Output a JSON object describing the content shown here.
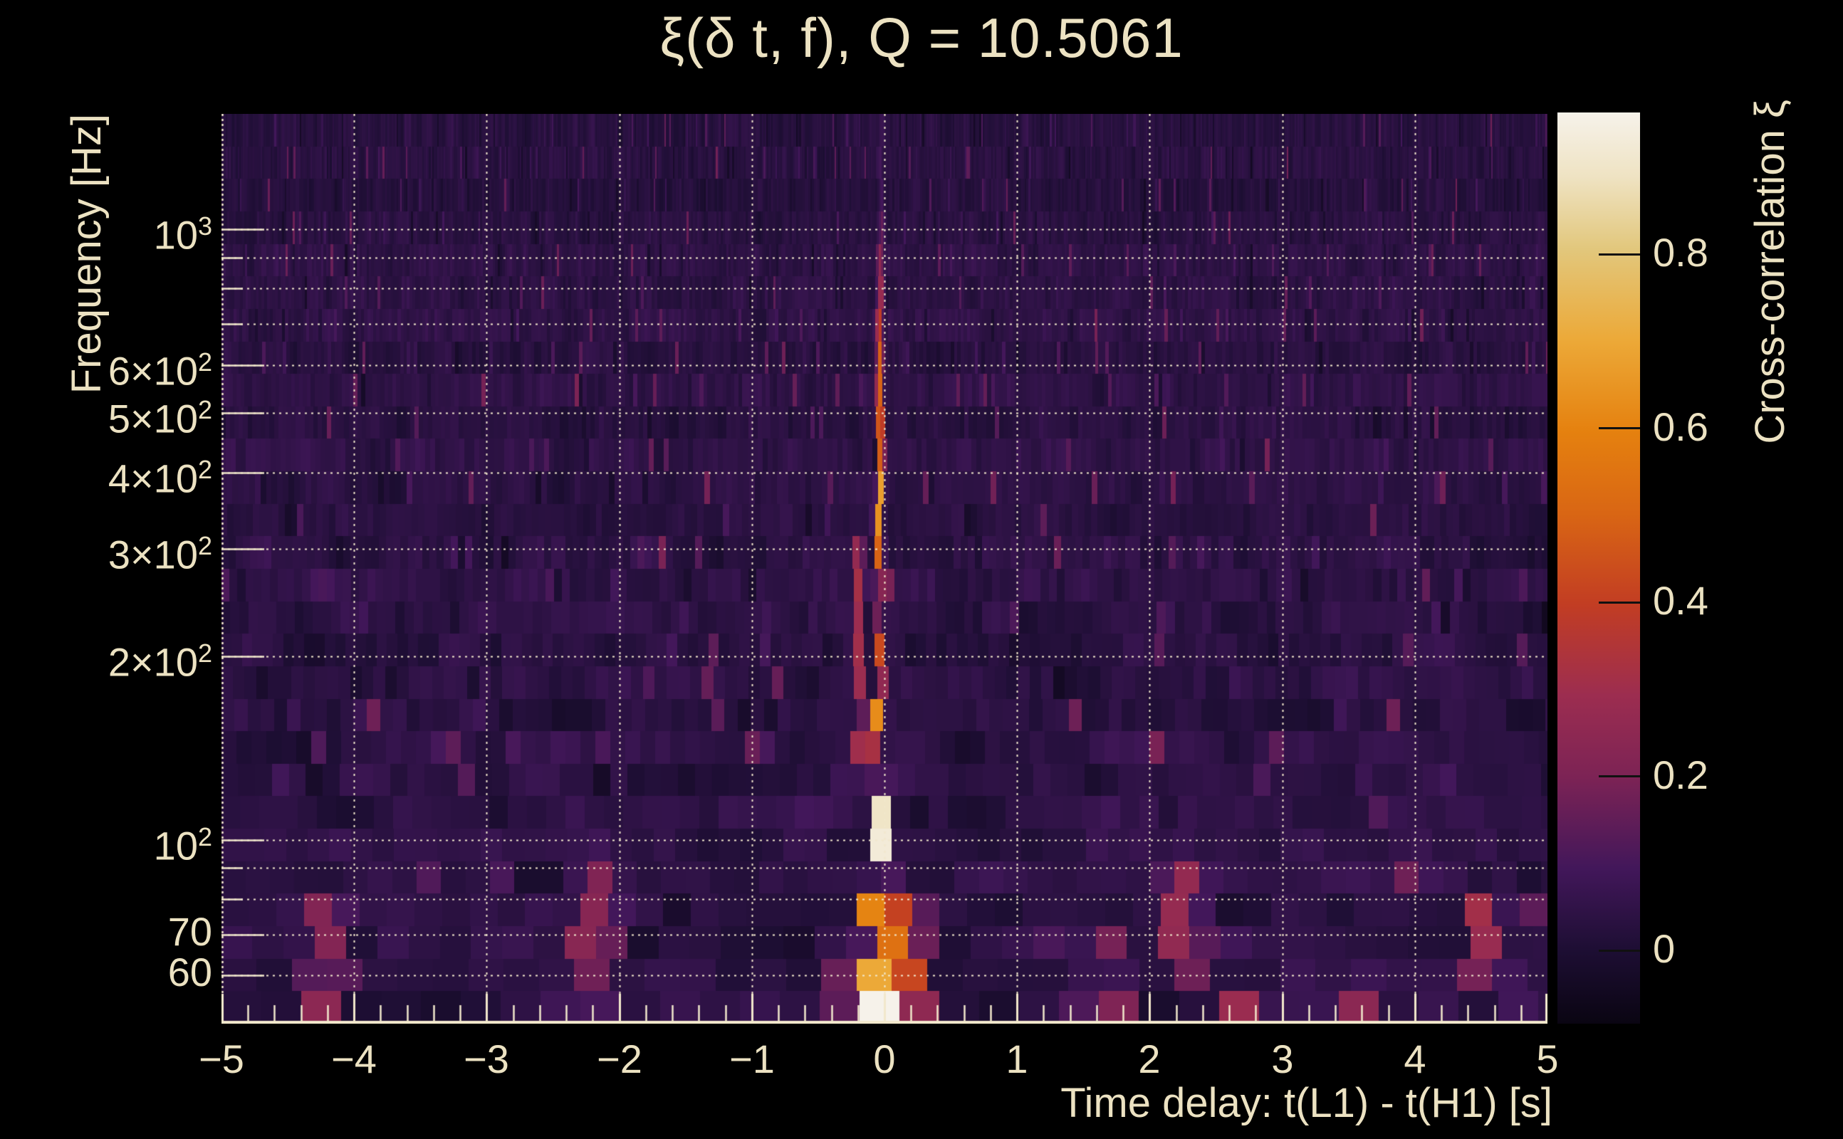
{
  "page": {
    "background": "#000000",
    "text_color": "#ece2c2"
  },
  "chart_data": {
    "type": "heatmap",
    "title": "ξ(δ t, f), Q = 10.5061",
    "q_value": 10.5061,
    "xlabel": "Time delay: t(L1) - t(H1) [s]",
    "ylabel": "Frequency [Hz]",
    "x_range": [
      -5,
      5
    ],
    "y_range_hz": [
      50,
      1546
    ],
    "y_scale": "log",
    "grid": "dotted",
    "grid_color": "#f2e8cc",
    "x_ticks": [
      {
        "v": -5,
        "label": "−5"
      },
      {
        "v": -4,
        "label": "−4"
      },
      {
        "v": -3,
        "label": "−3"
      },
      {
        "v": -2,
        "label": "−2"
      },
      {
        "v": -1,
        "label": "−1"
      },
      {
        "v": 0,
        "label": "0"
      },
      {
        "v": 1,
        "label": "1"
      },
      {
        "v": 2,
        "label": "2"
      },
      {
        "v": 3,
        "label": "3"
      },
      {
        "v": 4,
        "label": "4"
      },
      {
        "v": 5,
        "label": "5"
      }
    ],
    "x_minor_tick_step": 0.2,
    "x_gridline_values": [
      -4,
      -3,
      -2,
      -1,
      0,
      1,
      2,
      3,
      4
    ],
    "y_ticks": [
      {
        "f": 1000,
        "base": "10",
        "exp": "3"
      },
      {
        "f": 600,
        "base": "6×10",
        "exp": "2"
      },
      {
        "f": 500,
        "base": "5×10",
        "exp": "2"
      },
      {
        "f": 400,
        "base": "4×10",
        "exp": "2"
      },
      {
        "f": 300,
        "base": "3×10",
        "exp": "2"
      },
      {
        "f": 200,
        "base": "2×10",
        "exp": "2"
      },
      {
        "f": 100,
        "base": "10",
        "exp": "2"
      },
      {
        "f": 70,
        "base": "70",
        "exp": ""
      },
      {
        "f": 60,
        "base": "60",
        "exp": ""
      }
    ],
    "y_gridline_values": [
      1000,
      900,
      800,
      700,
      600,
      500,
      400,
      300,
      200,
      100,
      90,
      80,
      70,
      60
    ],
    "colorbar": {
      "label": "Cross-correlation ξ",
      "ticks": [
        0,
        0.2,
        0.4,
        0.6,
        0.8
      ],
      "tick_labels": [
        "0",
        "0.2",
        "0.4",
        "0.6",
        "0.8"
      ],
      "vmin": -0.084,
      "vmax": 0.963,
      "palette": [
        {
          "pos": 0.0,
          "color": "#0a0512"
        },
        {
          "pos": 0.08,
          "color": "#1d0e33"
        },
        {
          "pos": 0.17,
          "color": "#42175a"
        },
        {
          "pos": 0.27,
          "color": "#7c2355"
        },
        {
          "pos": 0.36,
          "color": "#9c2d50"
        },
        {
          "pos": 0.46,
          "color": "#c23d23"
        },
        {
          "pos": 0.56,
          "color": "#d96614"
        },
        {
          "pos": 0.65,
          "color": "#e5810f"
        },
        {
          "pos": 0.75,
          "color": "#eca938"
        },
        {
          "pos": 0.85,
          "color": "#e2c77c"
        },
        {
          "pos": 0.93,
          "color": "#efe3c3"
        },
        {
          "pos": 1.0,
          "color": "#f6f2ea"
        }
      ]
    },
    "peak": {
      "time_delay_s": -0.03,
      "xi_max": 0.96,
      "brightest_freq_band_hz": [
        60,
        120
      ]
    },
    "signal_ridge": {
      "t0": -0.03,
      "sigma_floor_s": 0.016,
      "sigma_coef": 3.2,
      "amplitude_profile": [
        [
          1546,
          0.03
        ],
        [
          1100,
          0.08
        ],
        [
          950,
          0.18
        ],
        [
          800,
          0.3
        ],
        [
          650,
          0.42
        ],
        [
          520,
          0.55
        ],
        [
          420,
          0.6
        ],
        [
          330,
          0.66
        ],
        [
          260,
          0.7
        ],
        [
          210,
          0.7
        ],
        [
          170,
          0.75
        ],
        [
          140,
          0.8
        ],
        [
          115,
          0.88
        ],
        [
          100,
          0.92
        ],
        [
          88,
          0.95
        ],
        [
          76,
          0.93
        ],
        [
          66,
          0.92
        ],
        [
          60,
          0.9
        ],
        [
          56,
          0.78
        ],
        [
          52,
          0.72
        ],
        [
          50,
          0.7
        ]
      ]
    },
    "extra_ridges": [
      {
        "t": -0.19,
        "f": [
          140,
          330
        ],
        "a": 0.28,
        "sig": 0.025
      },
      {
        "t": 0.16,
        "f": [
          56,
          84
        ],
        "a": 0.4,
        "sig": 0.09
      },
      {
        "t": -0.3,
        "f": [
          58,
          76
        ],
        "a": 0.22,
        "sig": 0.05
      },
      {
        "t": 0.03,
        "f": [
          50,
          58
        ],
        "a": 0.55,
        "sig": 0.13
      }
    ],
    "noise_hotspots": [
      {
        "t": -4.3,
        "f": [
          52,
          60
        ],
        "a": 0.33,
        "w": 0.1
      },
      {
        "t": -4.2,
        "f": [
          60,
          80
        ],
        "a": 0.22,
        "w": 0.1
      },
      {
        "t": -2.3,
        "f": [
          52,
          58
        ],
        "a": 0.28,
        "w": 0.09
      },
      {
        "t": -2.15,
        "f": [
          60,
          90
        ],
        "a": 0.2,
        "w": 0.1
      },
      {
        "t": 1.35,
        "f": [
          52,
          60
        ],
        "a": 0.3,
        "w": 0.09
      },
      {
        "t": 1.7,
        "f": [
          52,
          60
        ],
        "a": 0.28,
        "w": 0.08
      },
      {
        "t": 2.25,
        "f": [
          62,
          90
        ],
        "a": 0.26,
        "w": 0.1
      },
      {
        "t": 2.4,
        "f": [
          55,
          65
        ],
        "a": 0.28,
        "w": 0.08
      },
      {
        "t": 2.7,
        "f": [
          52,
          58
        ],
        "a": 0.26,
        "w": 0.08
      },
      {
        "t": 3.1,
        "f": [
          52,
          60
        ],
        "a": 0.28,
        "w": 0.09
      },
      {
        "t": 3.55,
        "f": [
          52,
          58
        ],
        "a": 0.25,
        "w": 0.08
      },
      {
        "t": 4.55,
        "f": [
          58,
          85
        ],
        "a": 0.28,
        "w": 0.1
      },
      {
        "t": 4.9,
        "f": [
          52,
          58
        ],
        "a": 0.22,
        "w": 0.08
      }
    ],
    "noise": {
      "seed": 1337,
      "rows": 28,
      "bin_cycles": 16,
      "base_mu": 0.035,
      "row_sd": 0.018,
      "bin_sd": 0.045,
      "corr": 0.45,
      "streak_prob": 0.055,
      "streak_amp": 0.14
    }
  }
}
